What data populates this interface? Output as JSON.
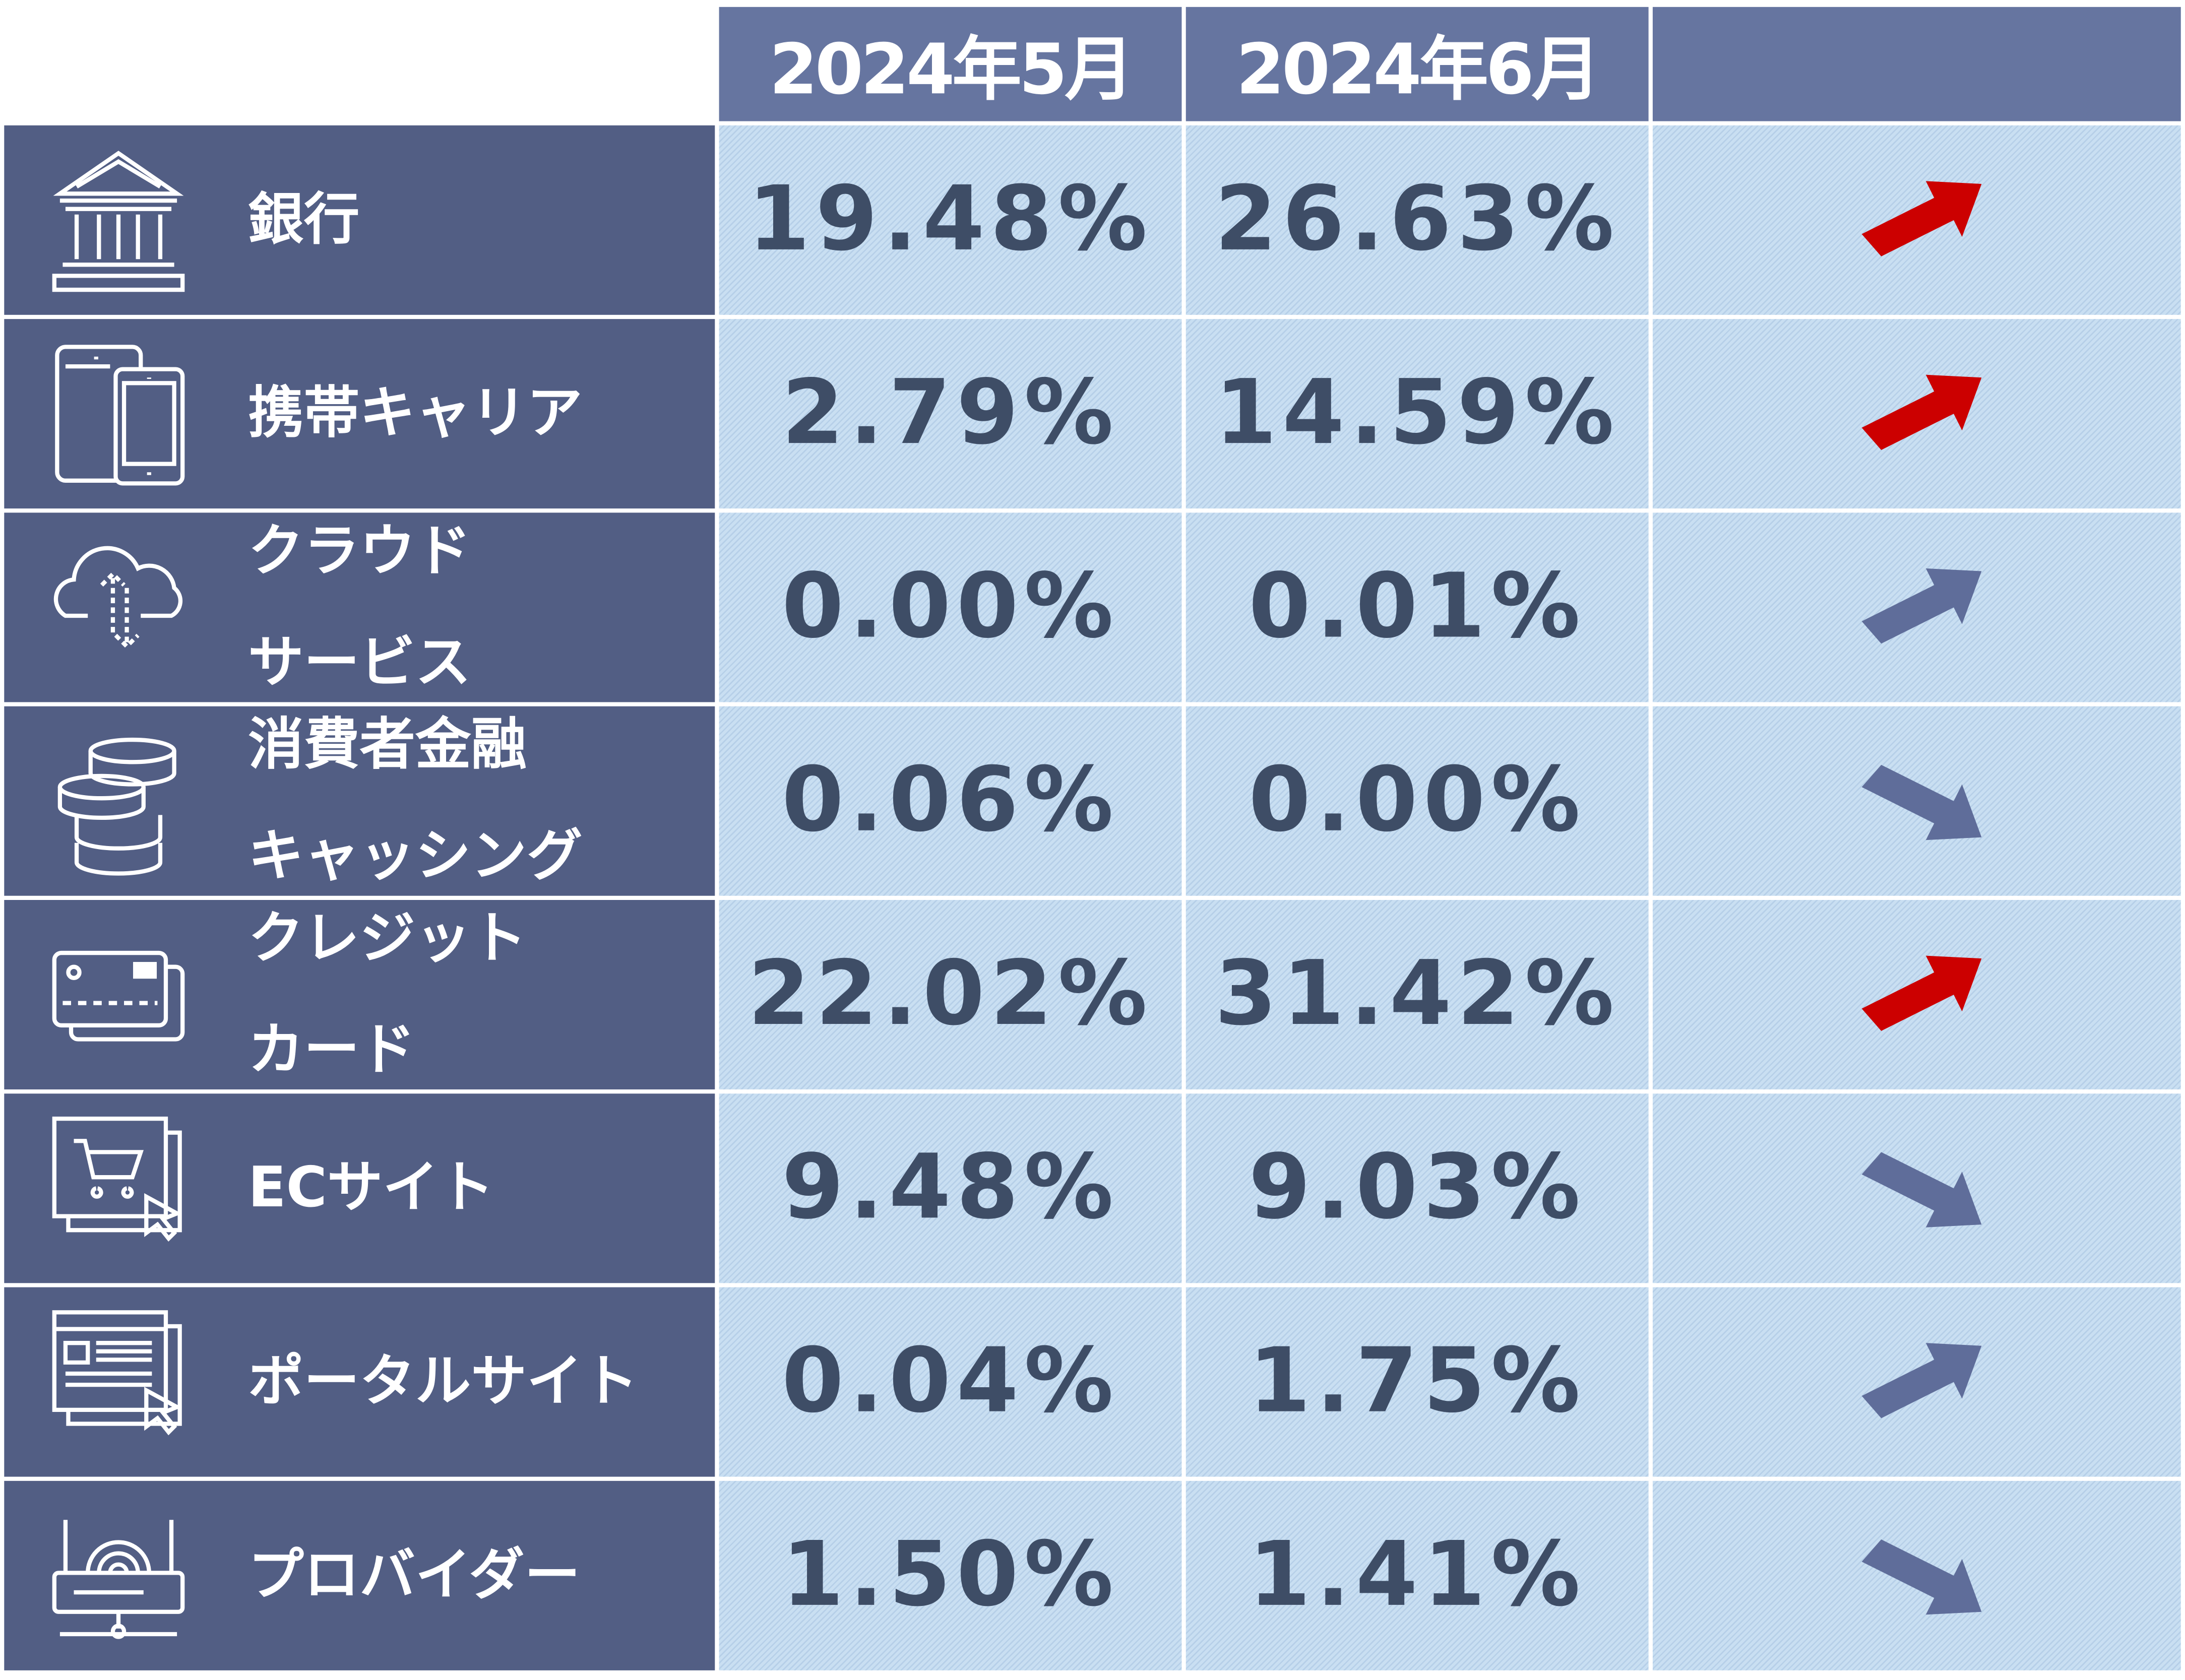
{
  "header": {
    "col1": "2024年5月",
    "col2": "2024年6月",
    "col3": ""
  },
  "colors": {
    "up": "#cc0000",
    "neutral": "#5f6d9a",
    "label_bg": "#525e84",
    "header_bg": "#6675a0"
  },
  "rows": [
    {
      "label": "銀行",
      "icon": "bank-icon",
      "may": "19.48%",
      "june": "26.63%",
      "trend": "up",
      "highlight": true
    },
    {
      "label": "携帯キャリア",
      "icon": "mobile-devices-icon",
      "may": "2.79%",
      "june": "14.59%",
      "trend": "up",
      "highlight": true
    },
    {
      "label": "クラウド\nサービス",
      "icon": "cloud-transfer-icon",
      "may": "0.00%",
      "june": "0.01%",
      "trend": "up",
      "highlight": false
    },
    {
      "label": "消費者金融\nキャッシング",
      "icon": "coins-icon",
      "may": "0.06%",
      "june": "0.00%",
      "trend": "down",
      "highlight": false
    },
    {
      "label": "クレジット\nカード",
      "icon": "credit-card-icon",
      "may": "22.02%",
      "june": "31.42%",
      "trend": "up",
      "highlight": true
    },
    {
      "label": "ECサイト",
      "icon": "ec-site-cart-icon",
      "may": "9.48%",
      "june": "9.03%",
      "trend": "down",
      "highlight": false
    },
    {
      "label": "ポータルサイト",
      "icon": "portal-site-icon",
      "may": "0.04%",
      "june": "1.75%",
      "trend": "up",
      "highlight": false
    },
    {
      "label": "プロバイダー",
      "icon": "router-icon",
      "may": "1.50%",
      "june": "1.41%",
      "trend": "down",
      "highlight": false
    }
  ]
}
